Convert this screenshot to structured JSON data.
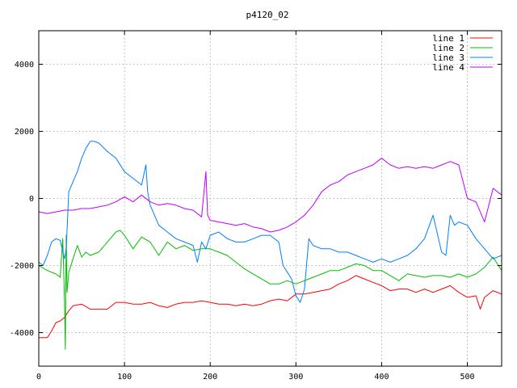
{
  "chart_data": {
    "type": "line",
    "title": "p4120_02",
    "xlabel": "",
    "ylabel": "",
    "xlim": [
      0,
      540
    ],
    "ylim": [
      -5000,
      5000
    ],
    "xticks": [
      0,
      100,
      200,
      300,
      400,
      500
    ],
    "yticks": [
      -4000,
      -2000,
      0,
      2000,
      4000
    ],
    "grid": true,
    "legend_position": "top-right",
    "series": [
      {
        "name": "line 1",
        "color": "#ff0000",
        "x": [
          0,
          10,
          15,
          20,
          25,
          30,
          35,
          40,
          50,
          60,
          70,
          80,
          90,
          100,
          110,
          120,
          130,
          140,
          150,
          160,
          170,
          180,
          190,
          200,
          210,
          220,
          230,
          240,
          250,
          260,
          270,
          280,
          290,
          300,
          310,
          320,
          330,
          340,
          350,
          360,
          370,
          380,
          390,
          400,
          410,
          420,
          430,
          440,
          450,
          460,
          470,
          480,
          490,
          500,
          510,
          515,
          520,
          530,
          540
        ],
        "y": [
          -4150,
          -4150,
          -3950,
          -3700,
          -3650,
          -3550,
          -3350,
          -3200,
          -3150,
          -3300,
          -3300,
          -3300,
          -3100,
          -3100,
          -3150,
          -3150,
          -3100,
          -3200,
          -3250,
          -3150,
          -3100,
          -3100,
          -3050,
          -3100,
          -3150,
          -3150,
          -3200,
          -3150,
          -3200,
          -3150,
          -3050,
          -3000,
          -3050,
          -2850,
          -2850,
          -2800,
          -2750,
          -2700,
          -2550,
          -2450,
          -2300,
          -2400,
          -2500,
          -2600,
          -2750,
          -2700,
          -2700,
          -2800,
          -2700,
          -2800,
          -2700,
          -2600,
          -2800,
          -2950,
          -2900,
          -3300,
          -2950,
          -2750,
          -2850
        ]
      },
      {
        "name": "line 2",
        "color": "#00c000",
        "x": [
          0,
          10,
          20,
          25,
          28,
          30,
          31,
          32,
          33,
          35,
          40,
          45,
          50,
          55,
          60,
          70,
          80,
          90,
          95,
          100,
          110,
          120,
          130,
          140,
          150,
          160,
          170,
          180,
          190,
          200,
          210,
          220,
          230,
          240,
          250,
          260,
          270,
          280,
          290,
          300,
          310,
          320,
          330,
          340,
          350,
          360,
          370,
          380,
          390,
          400,
          410,
          420,
          430,
          440,
          450,
          460,
          470,
          480,
          490,
          500,
          510,
          520,
          530,
          540
        ],
        "y": [
          -2000,
          -2150,
          -2250,
          -2350,
          -1200,
          -3000,
          -4500,
          -1100,
          -2800,
          -2200,
          -1800,
          -1400,
          -1750,
          -1600,
          -1700,
          -1600,
          -1300,
          -1000,
          -950,
          -1100,
          -1500,
          -1150,
          -1300,
          -1700,
          -1300,
          -1500,
          -1400,
          -1550,
          -1500,
          -1500,
          -1600,
          -1700,
          -1900,
          -2100,
          -2250,
          -2400,
          -2550,
          -2550,
          -2450,
          -2550,
          -2450,
          -2350,
          -2250,
          -2150,
          -2150,
          -2050,
          -1950,
          -2000,
          -2150,
          -2150,
          -2300,
          -2450,
          -2250,
          -2300,
          -2350,
          -2300,
          -2300,
          -2350,
          -2250,
          -2350,
          -2250,
          -2050,
          -1750,
          -2150
        ]
      },
      {
        "name": "line 3",
        "color": "#0080ff",
        "x": [
          0,
          5,
          10,
          15,
          20,
          25,
          30,
          32,
          35,
          40,
          45,
          50,
          55,
          60,
          65,
          70,
          80,
          90,
          100,
          110,
          120,
          125,
          127,
          130,
          135,
          140,
          150,
          160,
          170,
          180,
          185,
          190,
          195,
          200,
          210,
          220,
          230,
          240,
          250,
          260,
          270,
          280,
          285,
          290,
          295,
          300,
          305,
          310,
          315,
          320,
          330,
          340,
          350,
          360,
          370,
          380,
          390,
          400,
          410,
          420,
          430,
          440,
          450,
          460,
          470,
          475,
          480,
          485,
          490,
          500,
          510,
          520,
          530,
          540
        ],
        "y": [
          -1900,
          -2000,
          -1700,
          -1300,
          -1200,
          -1250,
          -1800,
          -1500,
          200,
          500,
          800,
          1200,
          1500,
          1700,
          1700,
          1650,
          1400,
          1200,
          800,
          600,
          400,
          1000,
          200,
          -200,
          -500,
          -800,
          -1000,
          -1200,
          -1300,
          -1400,
          -1900,
          -1300,
          -1500,
          -1100,
          -1000,
          -1200,
          -1300,
          -1300,
          -1200,
          -1100,
          -1100,
          -1300,
          -2000,
          -2200,
          -2400,
          -2900,
          -3100,
          -2700,
          -1200,
          -1400,
          -1500,
          -1500,
          -1600,
          -1600,
          -1700,
          -1800,
          -1900,
          -1800,
          -1900,
          -1800,
          -1700,
          -1500,
          -1200,
          -500,
          -1600,
          -1700,
          -500,
          -800,
          -700,
          -800,
          -1200,
          -1500,
          -1800,
          -1700
        ]
      },
      {
        "name": "line 4",
        "color": "#c000ff",
        "x": [
          0,
          10,
          20,
          30,
          40,
          50,
          60,
          70,
          80,
          90,
          100,
          110,
          120,
          130,
          140,
          150,
          160,
          170,
          180,
          190,
          195,
          197,
          200,
          210,
          220,
          230,
          240,
          250,
          260,
          270,
          280,
          290,
          300,
          310,
          320,
          330,
          340,
          350,
          360,
          370,
          380,
          390,
          400,
          410,
          420,
          430,
          440,
          450,
          460,
          470,
          480,
          490,
          500,
          510,
          520,
          530,
          540
        ],
        "y": [
          -400,
          -450,
          -400,
          -350,
          -350,
          -300,
          -300,
          -250,
          -200,
          -100,
          50,
          -100,
          100,
          -100,
          -200,
          -150,
          -200,
          -300,
          -350,
          -550,
          800,
          -500,
          -650,
          -700,
          -750,
          -800,
          -750,
          -850,
          -900,
          -1000,
          -950,
          -850,
          -700,
          -500,
          -200,
          200,
          400,
          500,
          700,
          800,
          900,
          1000,
          1200,
          1000,
          900,
          950,
          900,
          950,
          900,
          1000,
          1100,
          1000,
          0,
          -100,
          -700,
          300,
          100
        ]
      }
    ]
  }
}
